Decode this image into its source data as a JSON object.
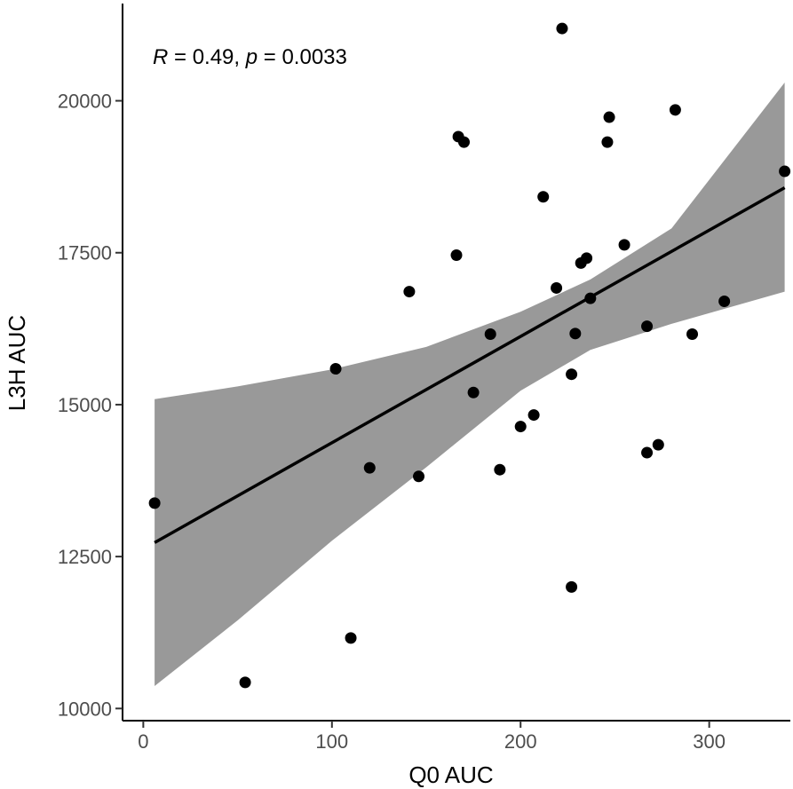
{
  "chart_data": {
    "type": "scatter",
    "xlabel": "Q0 AUC",
    "ylabel": "L3H AUC",
    "xlim": [
      -11,
      343
    ],
    "ylim": [
      9800,
      21600
    ],
    "x_ticks": [
      0,
      100,
      200,
      300
    ],
    "y_ticks": [
      10000,
      12500,
      15000,
      17500,
      20000
    ],
    "x_tick_labels": [
      "0",
      "100",
      "200",
      "300"
    ],
    "y_tick_labels": [
      "10000",
      "12500",
      "15000",
      "17500",
      "20000"
    ],
    "grid": false,
    "annotation": {
      "r_symbol": "R",
      "r_text": " = 0.49, ",
      "p_symbol": "p",
      "p_text": " = 0.0033"
    },
    "points": [
      {
        "x": 6,
        "y": 13380
      },
      {
        "x": 54,
        "y": 10430
      },
      {
        "x": 102,
        "y": 15590
      },
      {
        "x": 110,
        "y": 11160
      },
      {
        "x": 120,
        "y": 13960
      },
      {
        "x": 141,
        "y": 16860
      },
      {
        "x": 146,
        "y": 13820
      },
      {
        "x": 166,
        "y": 17460
      },
      {
        "x": 167,
        "y": 19410
      },
      {
        "x": 170,
        "y": 19320
      },
      {
        "x": 175,
        "y": 15200
      },
      {
        "x": 184,
        "y": 16160
      },
      {
        "x": 189,
        "y": 13930
      },
      {
        "x": 200,
        "y": 14640
      },
      {
        "x": 207,
        "y": 14830
      },
      {
        "x": 212,
        "y": 18420
      },
      {
        "x": 219,
        "y": 16920
      },
      {
        "x": 222,
        "y": 21190
      },
      {
        "x": 227,
        "y": 15500
      },
      {
        "x": 227,
        "y": 12000
      },
      {
        "x": 229,
        "y": 16170
      },
      {
        "x": 232,
        "y": 17330
      },
      {
        "x": 235,
        "y": 17410
      },
      {
        "x": 237,
        "y": 16750
      },
      {
        "x": 246,
        "y": 19320
      },
      {
        "x": 247,
        "y": 19730
      },
      {
        "x": 255,
        "y": 17630
      },
      {
        "x": 267,
        "y": 16290
      },
      {
        "x": 267,
        "y": 14210
      },
      {
        "x": 273,
        "y": 14340
      },
      {
        "x": 282,
        "y": 19850
      },
      {
        "x": 291,
        "y": 16160
      },
      {
        "x": 308,
        "y": 16700
      },
      {
        "x": 340,
        "y": 18840
      }
    ],
    "regression_line": {
      "x": [
        6,
        340
      ],
      "y": [
        12730,
        18570
      ]
    },
    "confidence_band": {
      "x": [
        6,
        50,
        100,
        150,
        200,
        237,
        280,
        340
      ],
      "upper": [
        15090,
        15300,
        15580,
        15950,
        16530,
        17060,
        17900,
        20300
      ],
      "lower": [
        10370,
        11450,
        12760,
        13970,
        15230,
        15900,
        16330,
        16860
      ]
    },
    "colors": {
      "points": "#000000",
      "line": "#000000",
      "band": "#999999",
      "axis": "#000000"
    }
  }
}
